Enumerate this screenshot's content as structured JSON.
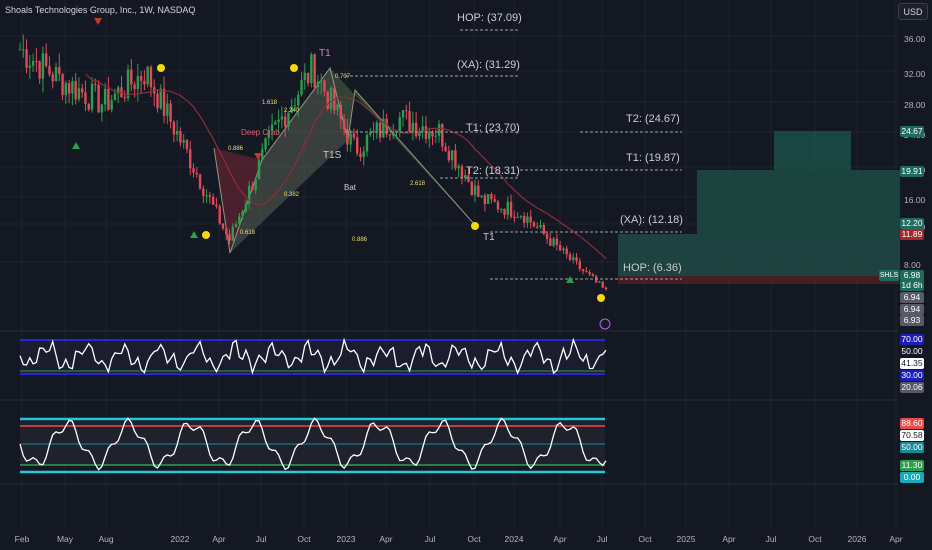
{
  "title": "Shoals Technologies Group, Inc., 1W, NASDAQ",
  "currency_button": "USD",
  "ticker_tag": "SHLS",
  "price_scale": [
    "36.00",
    "32.00",
    "28.00",
    "24.00",
    "20.00",
    "16.00",
    "12.00",
    "8.00"
  ],
  "price_tags": [
    {
      "label": "24.67",
      "color": "#1f6b5c"
    },
    {
      "label": "19.91",
      "color": "#1f6b5c"
    },
    {
      "label": "12.20",
      "color": "#1f6b5c"
    },
    {
      "label": "11.89",
      "color": "#a3282d"
    },
    {
      "label": "6.98",
      "color": "#1f6b5c"
    },
    {
      "label": "1d 6h",
      "color": "#1f6b5c"
    },
    {
      "label": "6.94",
      "color": "#555a66"
    },
    {
      "label": "6.94",
      "color": "#555a66"
    },
    {
      "label": "6.93",
      "color": "#555a66"
    }
  ],
  "rsi_scale": [
    {
      "label": "70.00",
      "color": "#1b1fb8"
    },
    {
      "label": "50.00",
      "color": "transparent"
    },
    {
      "label": "41.35",
      "color": "#ffffff",
      "text": "#131722"
    },
    {
      "label": "30.00",
      "color": "#1b1fb8"
    },
    {
      "label": "20.06",
      "color": "#555a66"
    }
  ],
  "osc_scale": [
    {
      "label": "88.60",
      "color": "#e84b4b"
    },
    {
      "label": "70.58",
      "color": "#ffffff",
      "text": "#131722"
    },
    {
      "label": "50.00",
      "color": "#1a8a9a"
    },
    {
      "label": "11.30",
      "color": "#2d9d4e"
    },
    {
      "label": "0.00",
      "color": "#1aa9b8"
    }
  ],
  "x_ticks": [
    "Feb",
    "May",
    "Aug",
    "2022",
    "Apr",
    "Jul",
    "Oct",
    "2023",
    "Apr",
    "Jul",
    "Oct",
    "2024",
    "Apr",
    "Jul",
    "Oct",
    "2025",
    "Apr",
    "Jul",
    "Oct",
    "2026",
    "Apr"
  ],
  "levels": [
    {
      "label": "HOP: (37.09)"
    },
    {
      "label": "(XA): (31.29)"
    },
    {
      "label": "T1: (23.70)"
    },
    {
      "label": "T2: (18.31)"
    },
    {
      "label": "T2: (24.67)"
    },
    {
      "label": "T1: (19.87)"
    },
    {
      "label": "(XA): (12.18)"
    },
    {
      "label": "HOP: (6.36)"
    }
  ],
  "annotations": {
    "deep_crab": "Deep Crab",
    "bat": "Bat",
    "t1": "T1",
    "t1s": "T1S",
    "ratios": [
      "0.886",
      "1.618",
      "2.240",
      "0.707",
      "0.382",
      "0.618",
      "2.618",
      "0.886",
      "1.618"
    ]
  },
  "chart_data": {
    "type": "line",
    "title": "Shoals Technologies Group, Inc., 1W, NASDAQ",
    "xlabel": "",
    "ylabel": "",
    "x": [
      "2021-02",
      "2021-05",
      "2021-08",
      "2021-11",
      "2022-01",
      "2022-04",
      "2022-07",
      "2022-10",
      "2023-01",
      "2023-04",
      "2023-07",
      "2023-10",
      "2024-01",
      "2024-04",
      "2024-07"
    ],
    "series": [
      {
        "values": [
          33.5,
          30.0,
          27.5,
          31.0,
          22.0,
          12.5,
          24.0,
          31.5,
          22.5,
          26.0,
          24.5,
          17.0,
          15.5,
          11.0,
          6.9
        ]
      }
    ],
    "ylim": [
      4,
      38
    ],
    "grid": true,
    "projection_targets": [
      24.67,
      19.87,
      12.18,
      6.36
    ]
  }
}
